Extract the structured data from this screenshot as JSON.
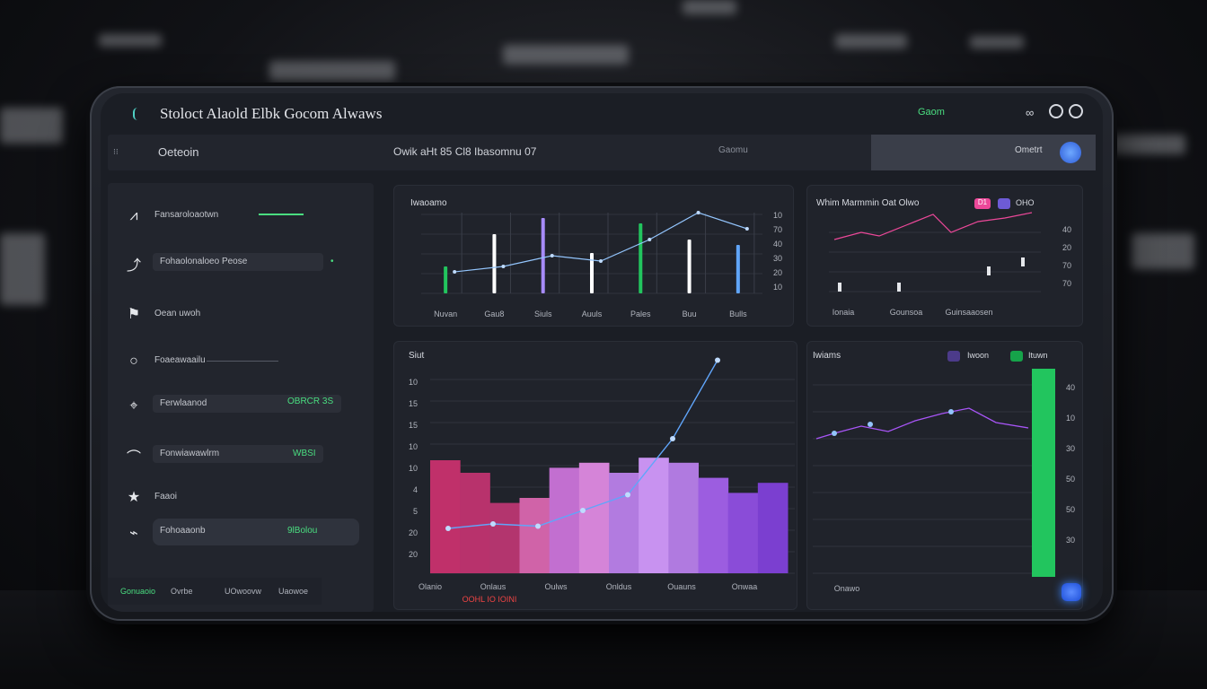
{
  "app": {
    "title": "Stoloct Alaold  Elbk  Gocom Alwaws"
  },
  "topbar": {
    "status_text": "Gaom",
    "icons": [
      "link-icon",
      "settings-icon",
      "globe-icon"
    ]
  },
  "subheader": {
    "page_label": "Oeteoin",
    "center_text": "Owik aHt 85 Cl8 Ibasomnu 07",
    "right_label": "Ometrt",
    "mid_label": "Gaomu"
  },
  "sidebar": {
    "items": [
      {
        "icon": "chart-icon",
        "label": "Fansaroloaotwn",
        "value": ""
      },
      {
        "icon": "trend-icon",
        "label": "Fohaolonaloeo Peose",
        "value": "•"
      },
      {
        "icon": "flag-icon",
        "label": "Oean uwoh",
        "value": ""
      },
      {
        "icon": "circle-icon",
        "label": "Foaeawaailu",
        "value": ""
      },
      {
        "icon": "pin-icon",
        "label": "Ferwlaanod",
        "value": "OBRCR 3S"
      },
      {
        "icon": "bell-icon",
        "label": "Fonwiawawlrm",
        "value": "WBSI"
      },
      {
        "icon": "star-icon",
        "label": "Faaoi",
        "value": ""
      },
      {
        "icon": "link-icon",
        "label": "Fohoaaonb",
        "value": "9lBolou"
      }
    ],
    "footer_text": [
      "Gonuaoio",
      "Ovrbe",
      "UOwoovw",
      "Uaowoe"
    ]
  },
  "panels": {
    "top_left": {
      "title": "Iwaoamo",
      "ylabels": [
        "10",
        "70",
        "40",
        "30",
        "20",
        "10"
      ],
      "xlabels": [
        "Nuvan",
        "Gau8",
        "Siuls",
        "Auuls",
        "Pales",
        "Buu",
        "Bulls"
      ]
    },
    "top_right": {
      "title": "Whim Marmmin Oat  Olwo",
      "ylabels": [
        "40",
        "20",
        "70",
        "70"
      ],
      "xlabels": [
        "Ionaia",
        "Gounsoa",
        "Guinsaaosen"
      ],
      "badges": [
        "D1",
        "OHO"
      ]
    },
    "bottom_left": {
      "title": "Siut",
      "ylabels": [
        "10",
        "15",
        "15",
        "10",
        "10",
        "4",
        "5",
        "20",
        "20"
      ],
      "xlabels": [
        "Olanio",
        "Onlaus",
        "Oulws",
        "Onldus",
        "Ouauns",
        "Onwaa"
      ],
      "range_label": "OOHL IO IOINI"
    },
    "bottom_right": {
      "title": "Iwiams",
      "ylabels": [
        "40",
        "10",
        "30",
        "50",
        "50",
        "30"
      ],
      "xlabels": [
        "Onawo"
      ],
      "legend": [
        "Iwoon",
        "Ituwn"
      ]
    }
  },
  "chart_data": [
    {
      "type": "bar",
      "title": "Iwaoamo",
      "categories": [
        "Nuvan",
        "Gau8",
        "Siuls",
        "Auuls",
        "Pales",
        "Buu",
        "Bulls"
      ],
      "series": [
        {
          "values": [
            10,
            22,
            28,
            15,
            26,
            20,
            18
          ]
        }
      ],
      "line": [
        8,
        10,
        14,
        12,
        20,
        30,
        24
      ]
    },
    {
      "type": "line",
      "title": "Siut",
      "x": [
        1,
        2,
        3,
        4,
        5,
        6,
        7
      ],
      "series": [
        {
          "values": [
            20,
            22,
            21,
            28,
            35,
            60,
            95
          ]
        }
      ],
      "bars": [
        45,
        40,
        28,
        30,
        42,
        44,
        40,
        46,
        44,
        38,
        32,
        36
      ]
    }
  ],
  "colors": {
    "accent": "#4ade80",
    "purple": "#a855f7",
    "pink": "#ec4899",
    "blue": "#60a5fa"
  }
}
